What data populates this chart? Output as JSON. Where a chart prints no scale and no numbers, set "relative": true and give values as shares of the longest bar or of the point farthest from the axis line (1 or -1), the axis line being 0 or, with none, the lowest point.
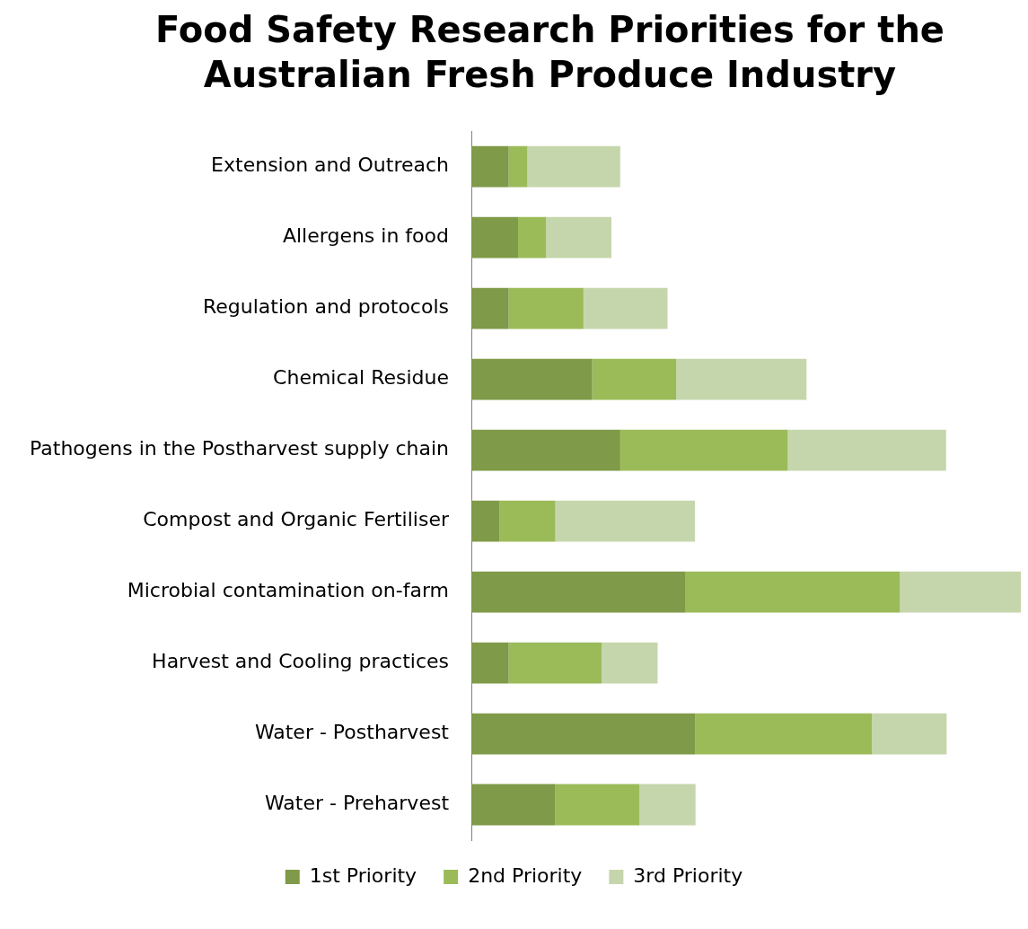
{
  "chart_data": {
    "type": "bar",
    "title": "Food Safety Research Priorities for the Australian Fresh Produce Industry",
    "orientation": "horizontal",
    "stacked": true,
    "relative": true,
    "legend": "bottom",
    "categories": [
      "Extension and Outreach",
      "Allergens in food",
      "Regulation and protocols",
      "Chemical Residue",
      "Pathogens in the Postharvest supply chain",
      "Compost and Organic Fertiliser",
      "Microbial contamination on-farm",
      "Harvest and Cooling practices",
      "Water - Postharvest",
      "Water - Preharvest"
    ],
    "series": [
      {
        "name": "1st Priority",
        "color": "#7f9a48",
        "values": [
          0.068,
          0.085,
          0.068,
          0.22,
          0.271,
          0.051,
          0.39,
          0.068,
          0.407,
          0.153
        ]
      },
      {
        "name": "2nd Priority",
        "color": "#9bbb59",
        "values": [
          0.034,
          0.051,
          0.136,
          0.153,
          0.305,
          0.102,
          0.39,
          0.169,
          0.322,
          0.153
        ]
      },
      {
        "name": "3rd Priority",
        "color": "#c6d6ac",
        "values": [
          0.169,
          0.119,
          0.153,
          0.237,
          0.288,
          0.254,
          0.22,
          0.102,
          0.136,
          0.102
        ]
      }
    ]
  }
}
